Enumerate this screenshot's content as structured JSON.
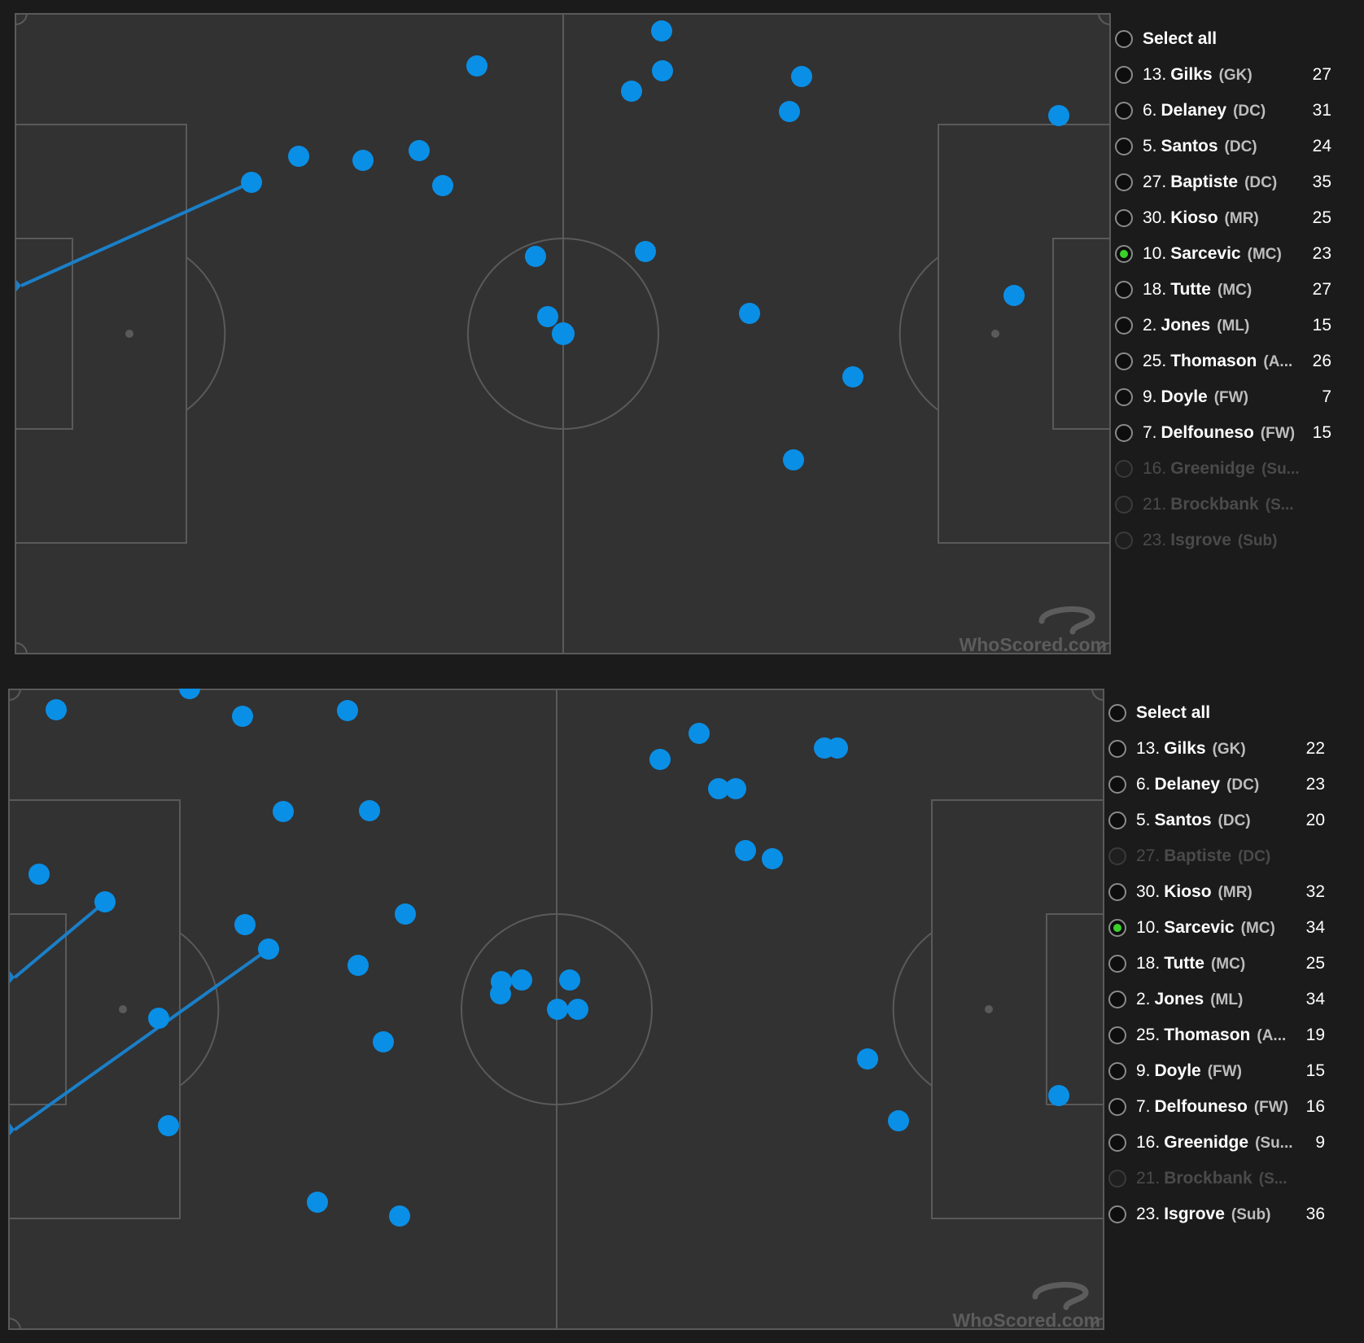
{
  "watermark": "WhoScored.com",
  "colors": {
    "marker": "#0a8fe6",
    "selected": "#39d12a",
    "pitch": "#323232",
    "line": "#5a5a5a"
  },
  "panels": [
    {
      "select_all": "Select all",
      "selected_index": 5,
      "players": [
        {
          "num": "13.",
          "name": "Gilks",
          "pos": "(GK)",
          "count": "27",
          "enabled": true
        },
        {
          "num": "6.",
          "name": "Delaney",
          "pos": "(DC)",
          "count": "31",
          "enabled": true
        },
        {
          "num": "5.",
          "name": "Santos",
          "pos": "(DC)",
          "count": "24",
          "enabled": true
        },
        {
          "num": "27.",
          "name": "Baptiste",
          "pos": "(DC)",
          "count": "35",
          "enabled": true
        },
        {
          "num": "30.",
          "name": "Kioso",
          "pos": "(MR)",
          "count": "25",
          "enabled": true
        },
        {
          "num": "10.",
          "name": "Sarcevic",
          "pos": "(MC)",
          "count": "23",
          "enabled": true
        },
        {
          "num": "18.",
          "name": "Tutte",
          "pos": "(MC)",
          "count": "27",
          "enabled": true
        },
        {
          "num": "2.",
          "name": "Jones",
          "pos": "(ML)",
          "count": "15",
          "enabled": true
        },
        {
          "num": "25.",
          "name": "Thomason",
          "pos": "(A...",
          "count": "26",
          "enabled": true
        },
        {
          "num": "9.",
          "name": "Doyle",
          "pos": "(FW)",
          "count": "7",
          "enabled": true
        },
        {
          "num": "7.",
          "name": "Delfouneso",
          "pos": "(FW)",
          "count": "15",
          "enabled": true
        },
        {
          "num": "16.",
          "name": "Greenidge",
          "pos": "(Su...",
          "count": "",
          "enabled": false
        },
        {
          "num": "21.",
          "name": "Brockbank",
          "pos": "(S...",
          "count": "",
          "enabled": false
        },
        {
          "num": "23.",
          "name": "Isgrove",
          "pos": "(Sub)",
          "count": "",
          "enabled": false
        }
      ]
    },
    {
      "select_all": "Select all",
      "selected_index": 5,
      "players": [
        {
          "num": "13.",
          "name": "Gilks",
          "pos": "(GK)",
          "count": "22",
          "enabled": true
        },
        {
          "num": "6.",
          "name": "Delaney",
          "pos": "(DC)",
          "count": "23",
          "enabled": true
        },
        {
          "num": "5.",
          "name": "Santos",
          "pos": "(DC)",
          "count": "20",
          "enabled": true
        },
        {
          "num": "27.",
          "name": "Baptiste",
          "pos": "(DC)",
          "count": "",
          "enabled": false
        },
        {
          "num": "30.",
          "name": "Kioso",
          "pos": "(MR)",
          "count": "32",
          "enabled": true
        },
        {
          "num": "10.",
          "name": "Sarcevic",
          "pos": "(MC)",
          "count": "34",
          "enabled": true
        },
        {
          "num": "18.",
          "name": "Tutte",
          "pos": "(MC)",
          "count": "25",
          "enabled": true
        },
        {
          "num": "2.",
          "name": "Jones",
          "pos": "(ML)",
          "count": "34",
          "enabled": true
        },
        {
          "num": "25.",
          "name": "Thomason",
          "pos": "(A...",
          "count": "19",
          "enabled": true
        },
        {
          "num": "9.",
          "name": "Doyle",
          "pos": "(FW)",
          "count": "15",
          "enabled": true
        },
        {
          "num": "7.",
          "name": "Delfouneso",
          "pos": "(FW)",
          "count": "16",
          "enabled": true
        },
        {
          "num": "16.",
          "name": "Greenidge",
          "pos": "(Su...",
          "count": "9",
          "enabled": true
        },
        {
          "num": "21.",
          "name": "Brockbank",
          "pos": "(S...",
          "count": "",
          "enabled": false
        },
        {
          "num": "23.",
          "name": "Isgrove",
          "pos": "(Sub)",
          "count": "36",
          "enabled": true
        }
      ]
    }
  ]
}
